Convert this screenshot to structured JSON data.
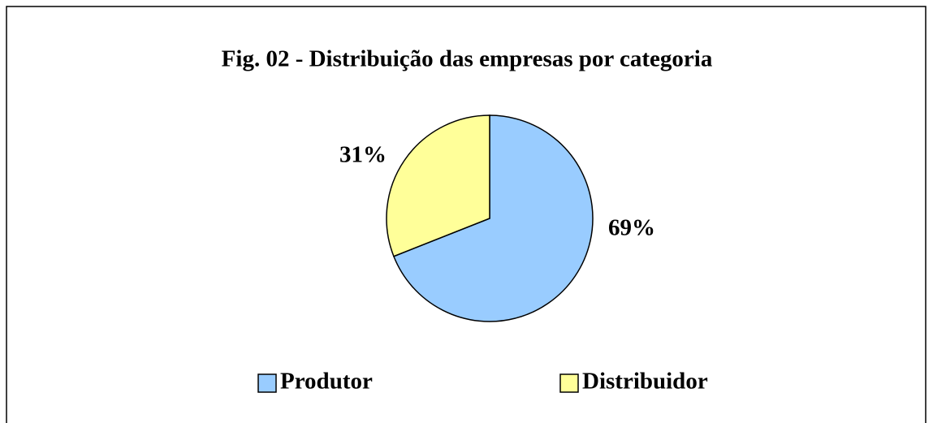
{
  "chart_data": {
    "type": "pie",
    "title": "Fig. 02 - Distribuição das empresas por categoria",
    "categories": [
      "Produtor",
      "Distribuidor"
    ],
    "values": [
      69,
      31
    ],
    "value_labels": [
      "69%",
      "31%"
    ],
    "colors": [
      "#99ccff",
      "#ffff99"
    ],
    "legend": "bottom"
  }
}
